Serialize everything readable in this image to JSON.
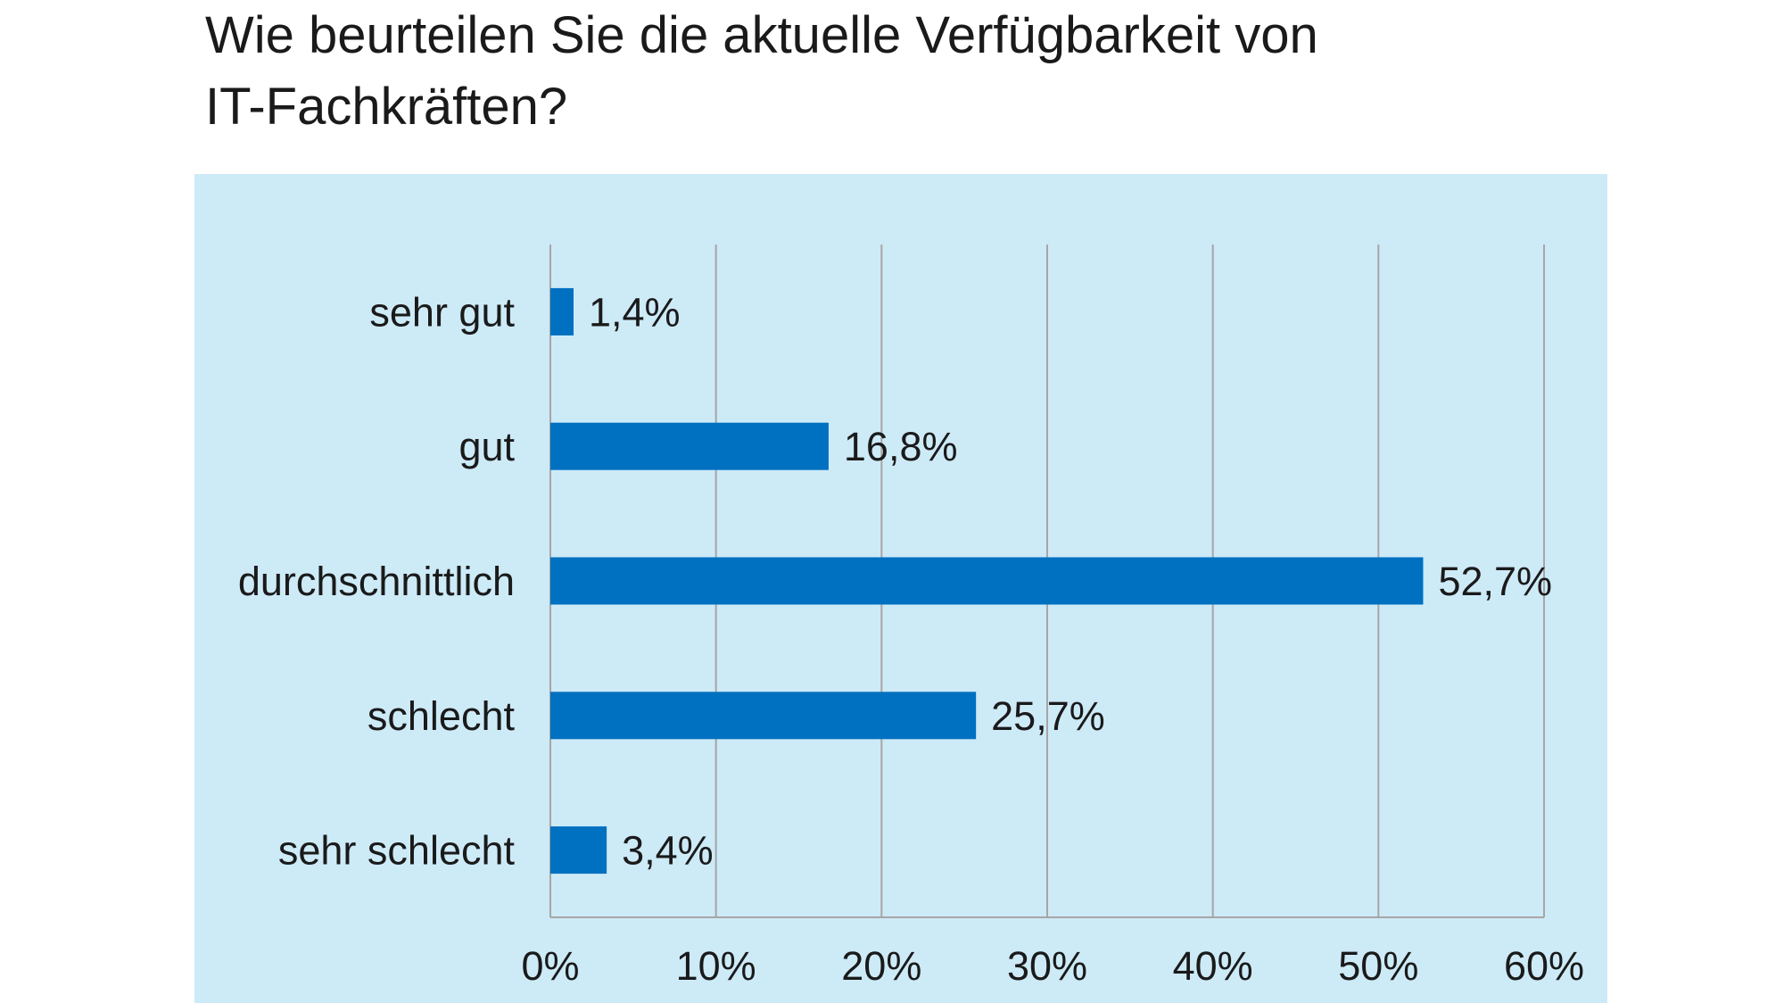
{
  "chart_data": {
    "type": "bar",
    "orientation": "horizontal",
    "title": "Wie beurteilen Sie die aktuelle Verfügbarkeit von\nIT-Fachkräften?",
    "categories": [
      "sehr gut",
      "gut",
      "durchschnittlich",
      "schlecht",
      "sehr schlecht"
    ],
    "values": [
      1.4,
      16.8,
      52.7,
      25.7,
      3.4
    ],
    "value_labels": [
      "1,4%",
      "16,8%",
      "52,7%",
      "25,7%",
      "3,4%"
    ],
    "xlim": [
      0,
      60
    ],
    "xticks": [
      0,
      10,
      20,
      30,
      40,
      50,
      60
    ],
    "xtick_labels": [
      "0%",
      "10%",
      "20%",
      "30%",
      "40%",
      "50%",
      "60%"
    ],
    "xlabel": "",
    "ylabel": "",
    "grid": "vertical",
    "legend": "none",
    "colors": {
      "bar": "#0070c0",
      "plot_background": "#cdeaf7",
      "grid": "#a6a6a6"
    }
  }
}
